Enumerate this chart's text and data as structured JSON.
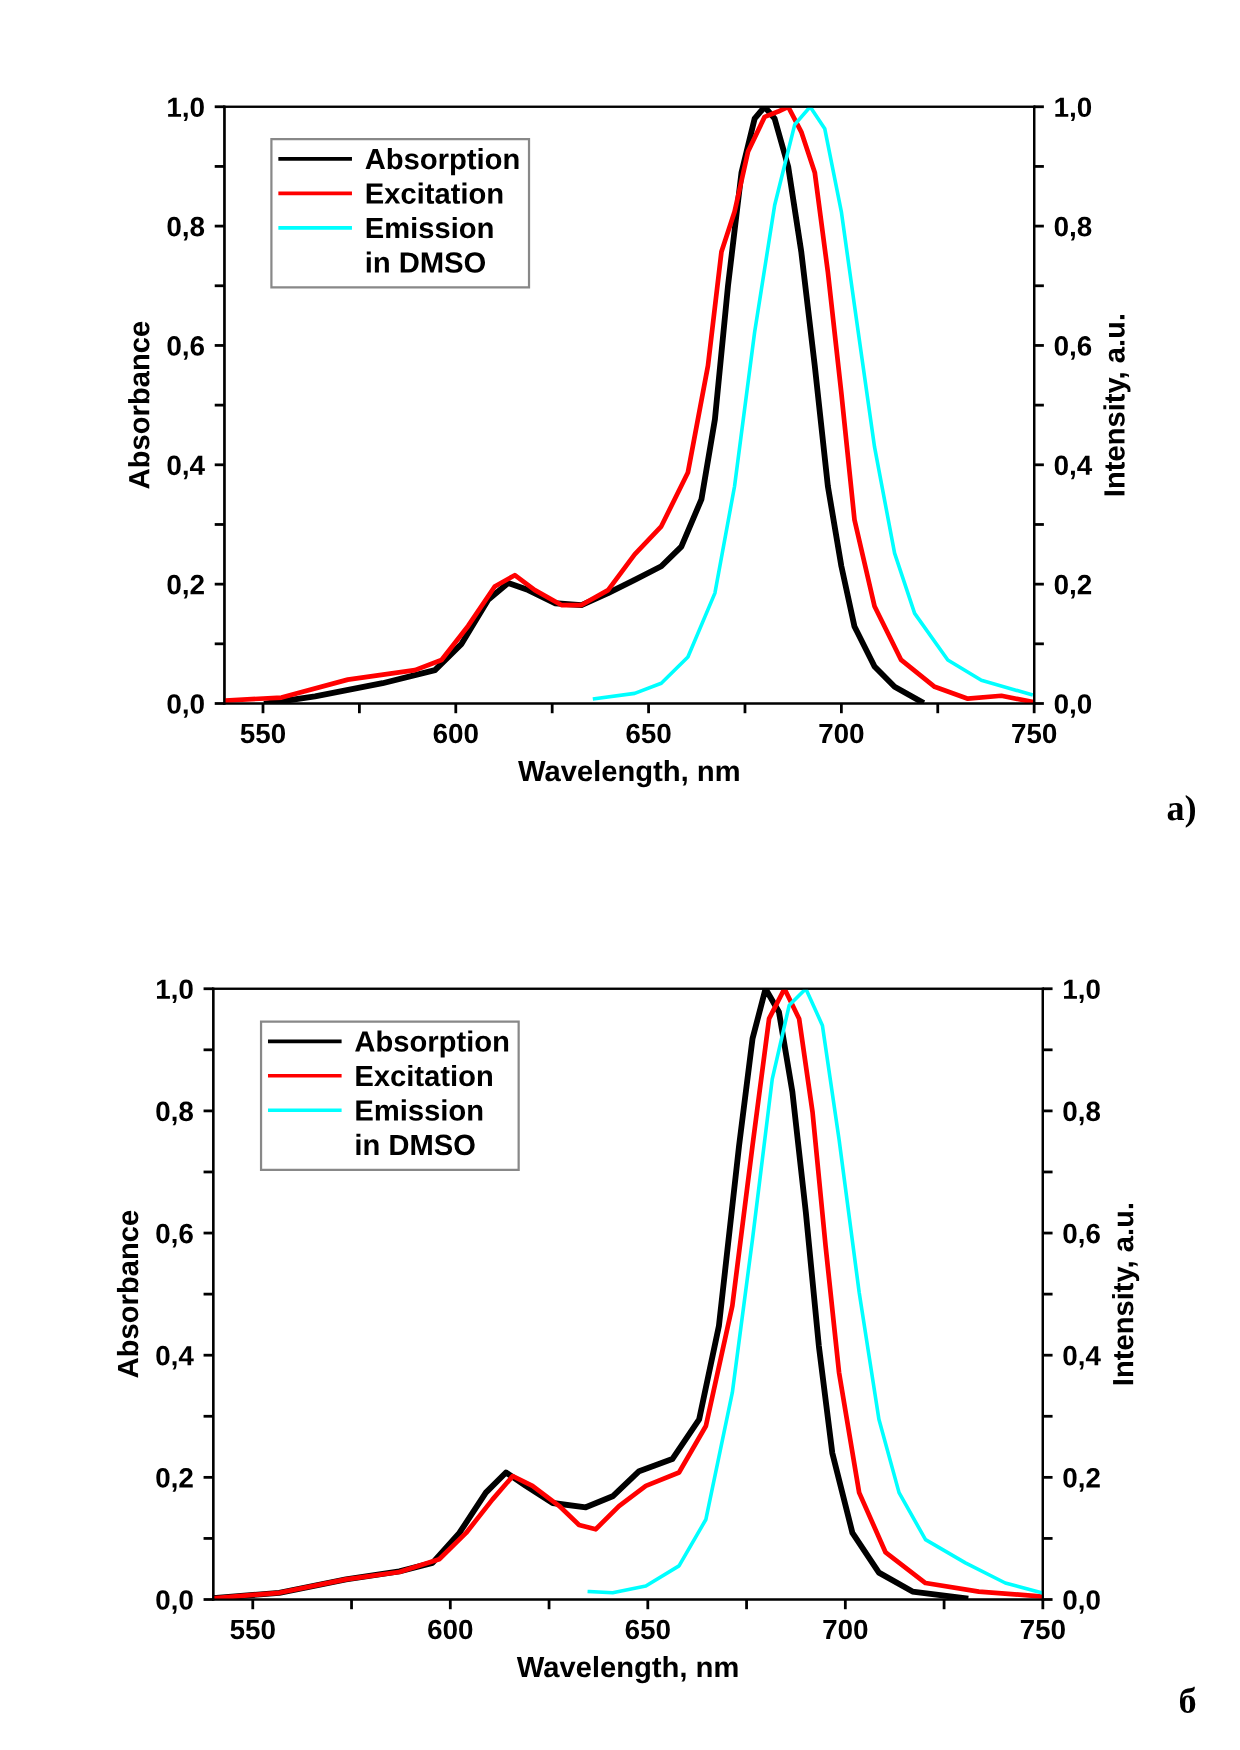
{
  "chart_data": [
    {
      "type": "line",
      "xlabel": "Wavelength, nm",
      "ylabel": "Absorbance",
      "y2label": "Intensity, a.u.",
      "annotations": [
        "in DMSO",
        "a)"
      ],
      "xlim": [
        540,
        750
      ],
      "xticks": [
        550,
        {
          "value": 575,
          "label": null
        },
        600,
        {
          "value": 625,
          "label": null
        },
        650,
        {
          "value": 675,
          "label": null
        },
        700,
        {
          "value": 725,
          "label": null
        },
        750
      ],
      "ylim": [
        0,
        1
      ],
      "yticks": [
        {
          "value": 0,
          "label": "0,0"
        },
        {
          "value": 0.1,
          "label": null
        },
        {
          "value": 0.2,
          "label": "0,2"
        },
        {
          "value": 0.3,
          "label": null
        },
        {
          "value": 0.4,
          "label": "0,4"
        },
        {
          "value": 0.5,
          "label": null
        },
        {
          "value": 0.6,
          "label": "0,6"
        },
        {
          "value": 0.7,
          "label": null
        },
        {
          "value": 0.8,
          "label": "0,8"
        },
        {
          "value": 0.9,
          "label": null
        },
        {
          "value": 1,
          "label": "1,0"
        }
      ],
      "y2lim": [
        0,
        1
      ],
      "y2ticks": [
        {
          "value": 0,
          "label": "0,0"
        },
        {
          "value": 0.1,
          "label": null
        },
        {
          "value": 0.2,
          "label": "0,2"
        },
        {
          "value": 0.3,
          "label": null
        },
        {
          "value": 0.4,
          "label": "0,4"
        },
        {
          "value": 0.5,
          "label": null
        },
        {
          "value": 0.6,
          "label": "0,6"
        },
        {
          "value": 0.7,
          "label": null
        },
        {
          "value": 0.8,
          "label": "0,8"
        },
        {
          "value": 0.9,
          "label": null
        },
        {
          "value": 1,
          "label": "1,0"
        }
      ],
      "legend": "top left",
      "grid": false,
      "marker": "none",
      "line_style": "solid",
      "series": [
        {
          "name": "Absorption",
          "color": "#000000",
          "x": [
            551,
            563.5,
            581,
            594.6,
            601.5,
            608.4,
            613.6,
            618.8,
            625.7,
            632.6,
            639.5,
            646.4,
            653.3,
            658.5,
            663.7,
            667.2,
            670.6,
            674.1,
            677.5,
            680.1,
            682.7,
            686.2,
            689.6,
            693.1,
            696.5,
            700,
            703.4,
            708.6,
            713.8,
            720.7
          ],
          "values": [
            0.0,
            0.012,
            0.034,
            0.056,
            0.1,
            0.174,
            0.202,
            0.19,
            0.168,
            0.165,
            0.185,
            0.207,
            0.23,
            0.263,
            0.342,
            0.476,
            0.7,
            0.89,
            0.98,
            1.0,
            0.98,
            0.9,
            0.757,
            0.566,
            0.364,
            0.23,
            0.129,
            0.062,
            0.028,
            0.003
          ]
        },
        {
          "name": "Excitation",
          "color": "#ff0000",
          "axis": "y2",
          "x": [
            540.2,
            554.8,
            572,
            589.4,
            596.3,
            603.2,
            610.1,
            615.3,
            620.5,
            627.4,
            632.6,
            639.5,
            646.4,
            653.3,
            660.2,
            665.4,
            668.9,
            672.3,
            675.8,
            680.1,
            683.6,
            686.2,
            689.6,
            693.1,
            696.5,
            700,
            703.4,
            708.6,
            715.5,
            724.2,
            732.8,
            741.5,
            749.2
          ],
          "values": [
            0.005,
            0.01,
            0.04,
            0.056,
            0.073,
            0.13,
            0.196,
            0.215,
            0.19,
            0.165,
            0.165,
            0.19,
            0.25,
            0.297,
            0.387,
            0.566,
            0.757,
            0.824,
            0.925,
            0.983,
            0.992,
            1.0,
            0.958,
            0.89,
            0.723,
            0.52,
            0.308,
            0.163,
            0.073,
            0.028,
            0.008,
            0.013,
            0.003
          ]
        },
        {
          "name": "Emission",
          "color": "#00ffff",
          "axis": "y2",
          "x": [
            636,
            646.4,
            653.3,
            660.2,
            667.2,
            672.3,
            677.5,
            682.7,
            687.9,
            691.9,
            695.7,
            700,
            703.4,
            708.6,
            713.8,
            719,
            727.6,
            736.3,
            749.2
          ],
          "values": [
            0.008,
            0.017,
            0.034,
            0.078,
            0.185,
            0.364,
            0.622,
            0.835,
            0.97,
            1.0,
            0.963,
            0.824,
            0.667,
            0.43,
            0.252,
            0.151,
            0.073,
            0.039,
            0.015
          ]
        }
      ]
    },
    {
      "type": "line",
      "xlabel": "Wavelength, nm",
      "ylabel": "Absorbance",
      "y2label": "Intensity, a.u.",
      "annotations": [
        "in DMSO",
        "б"
      ],
      "xlim": [
        540,
        750
      ],
      "xticks": [
        550,
        {
          "value": 575,
          "label": null
        },
        600,
        {
          "value": 625,
          "label": null
        },
        650,
        {
          "value": 675,
          "label": null
        },
        700,
        {
          "value": 725,
          "label": null
        },
        750
      ],
      "ylim": [
        0,
        1
      ],
      "yticks": [
        {
          "value": 0,
          "label": "0,0"
        },
        {
          "value": 0.1,
          "label": null
        },
        {
          "value": 0.2,
          "label": "0,2"
        },
        {
          "value": 0.3,
          "label": null
        },
        {
          "value": 0.4,
          "label": "0,4"
        },
        {
          "value": 0.5,
          "label": null
        },
        {
          "value": 0.6,
          "label": "0,6"
        },
        {
          "value": 0.7,
          "label": null
        },
        {
          "value": 0.8,
          "label": "0,8"
        },
        {
          "value": 0.9,
          "label": null
        },
        {
          "value": 1,
          "label": "1,0"
        }
      ],
      "y2lim": [
        0,
        1
      ],
      "y2ticks": [
        {
          "value": 0,
          "label": "0,0"
        },
        {
          "value": 0.1,
          "label": null
        },
        {
          "value": 0.2,
          "label": "0,2"
        },
        {
          "value": 0.3,
          "label": null
        },
        {
          "value": 0.4,
          "label": "0,4"
        },
        {
          "value": 0.5,
          "label": null
        },
        {
          "value": 0.6,
          "label": "0,6"
        },
        {
          "value": 0.7,
          "label": null
        },
        {
          "value": 0.8,
          "label": "0,8"
        },
        {
          "value": 0.9,
          "label": null
        },
        {
          "value": 1,
          "label": "1,0"
        }
      ],
      "legend": "top left",
      "grid": false,
      "marker": "none",
      "line_style": "solid",
      "series": [
        {
          "name": "Absorption",
          "color": "#000000",
          "x": [
            540,
            556.7,
            573.6,
            587.1,
            595.5,
            602.3,
            609,
            614.1,
            619.1,
            625.9,
            634.3,
            641.1,
            647.8,
            656.2,
            663,
            668,
            673.1,
            676.5,
            679.8,
            683.2,
            686.6,
            690,
            693.3,
            696.7,
            701.8,
            708.5,
            717,
            730.4
          ],
          "values": [
            0.002,
            0.011,
            0.033,
            0.046,
            0.06,
            0.109,
            0.175,
            0.208,
            0.186,
            0.158,
            0.151,
            0.169,
            0.21,
            0.23,
            0.295,
            0.448,
            0.743,
            0.918,
            1.0,
            0.962,
            0.831,
            0.634,
            0.415,
            0.24,
            0.109,
            0.044,
            0.013,
            0.002
          ]
        },
        {
          "name": "Excitation",
          "color": "#ff0000",
          "axis": "y2",
          "x": [
            540,
            556.7,
            573.6,
            587.1,
            597.2,
            604,
            610.7,
            615.8,
            620.8,
            627.6,
            632.6,
            636.8,
            642.7,
            649.5,
            657.9,
            664.7,
            671.4,
            676.5,
            680.7,
            684.6,
            688.3,
            691.7,
            695,
            698.4,
            703.5,
            710.2,
            720.3,
            733.8,
            749.8
          ],
          "values": [
            0.002,
            0.011,
            0.033,
            0.045,
            0.066,
            0.109,
            0.164,
            0.202,
            0.186,
            0.153,
            0.122,
            0.115,
            0.153,
            0.186,
            0.208,
            0.284,
            0.481,
            0.743,
            0.951,
            1.0,
            0.951,
            0.798,
            0.579,
            0.372,
            0.175,
            0.077,
            0.027,
            0.013,
            0.005
          ]
        },
        {
          "name": "Emission",
          "color": "#00ffff",
          "axis": "y2",
          "x": [
            635.2,
            641.1,
            649.5,
            657.9,
            664.7,
            671.4,
            676.5,
            681.5,
            685.8,
            690,
            694.2,
            698.4,
            703.5,
            708.5,
            713.6,
            720.3,
            730.4,
            740.5,
            749.8
          ],
          "values": [
            0.013,
            0.011,
            0.022,
            0.055,
            0.131,
            0.339,
            0.59,
            0.852,
            0.973,
            1.0,
            0.94,
            0.754,
            0.503,
            0.295,
            0.175,
            0.098,
            0.06,
            0.027,
            0.011
          ]
        }
      ]
    }
  ]
}
